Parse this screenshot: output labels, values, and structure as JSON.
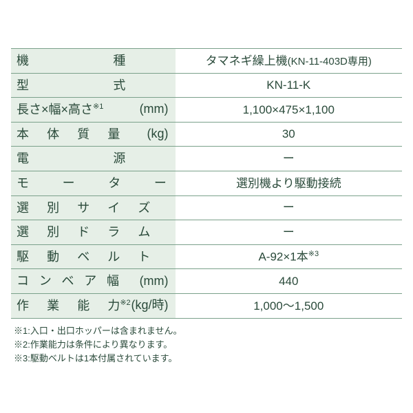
{
  "rows": [
    {
      "label_html": "<span class='label-main'><span class='spread2'>機</span><span class='nolast'>種</span></span>",
      "value_html": "タマネギ繰上機<span class='modelparen'>(KN-11-403D専用)</span>"
    },
    {
      "label_html": "<span class='label-main'><span class='spread2'>型</span><span class='nolast'>式</span></span>",
      "value_html": "KN-11-K"
    },
    {
      "label_html": "<span class='label-main'>長さ×幅×高さ<span class='sup'>※1</span></span><span class='unit'>(mm)</span>",
      "value_html": "1,100×475×1,100"
    },
    {
      "label_html": "<span class='label-main'><span class='spread4'>本体質</span><span class='nolast'>量</span></span><span class='unit'>(kg)</span>",
      "value_html": "30"
    },
    {
      "label_html": "<span class='label-main'><span class='spread2'>電</span><span class='nolast'>源</span></span>",
      "value_html": "ー"
    },
    {
      "label_html": "<span class='label-main'><span class='spread3'>モータ</span><span class='nolast'>ー</span></span>",
      "value_html": "選別機より駆動接続"
    },
    {
      "label_html": "<span class='label-main'><span class='spread4'>選別サイ</span><span class='nolast'>ズ</span></span>",
      "value_html": "ー"
    },
    {
      "label_html": "<span class='label-main'><span class='spread4'>選別ドラ</span><span class='nolast'>ム</span></span>",
      "value_html": "ー"
    },
    {
      "label_html": "<span class='label-main'><span class='spread4'>駆動ベル</span><span class='nolast'>ト</span></span>",
      "value_html": "A-92×1本<span class='sup-v'>※3</span>"
    },
    {
      "label_html": "<span class='label-main'><span class='spread5'>コンベア</span><span class='nolast'>幅</span></span><span class='unit'>(mm)</span>",
      "value_html": "440"
    },
    {
      "label_html": "<span class='label-main'><span class='spread4'>作業能</span><span class='nolast'>力</span><span class='sup'>※2</span></span><span class='unit'>(kg/時)</span>",
      "value_html": "1,000〜1,500"
    }
  ],
  "notes": [
    "※1:入口・出口ホッパーは含まれません。",
    "※2:作業能力は条件により異なります。",
    "※3:駆動ベルトは1本付属されています。"
  ],
  "colors": {
    "label_bg": "#e6efe7",
    "value_bg": "#ffffff",
    "border": "#7aa08a",
    "text": "#2a4a3a"
  }
}
